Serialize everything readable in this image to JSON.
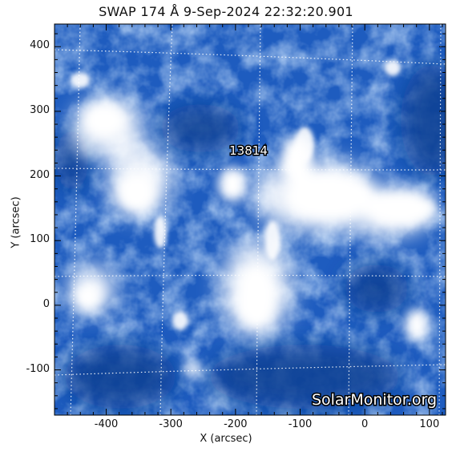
{
  "title": "SWAP  174 Å   9-Sep-2024 22:32:20.901",
  "xaxis": {
    "label": "X (arcsec)",
    "ticks": [
      "-400",
      "-300",
      "-200",
      "-100",
      "0",
      "100"
    ],
    "tick_values": [
      -400,
      -300,
      -200,
      -100,
      0,
      100
    ],
    "range": [
      -480,
      125
    ]
  },
  "yaxis": {
    "label": "Y (arcsec)",
    "ticks": [
      "400",
      "300",
      "200",
      "100",
      "0",
      "-100"
    ],
    "tick_values": [
      400,
      300,
      200,
      100,
      0,
      -100
    ],
    "range": [
      -170,
      435
    ]
  },
  "region_label": "13814",
  "watermark": "SolarMonitor.org",
  "colors": {
    "image_dark": "#0b3f91",
    "image_mid": "#2a6fd0",
    "image_light": "#8fb8ee",
    "image_bright": "#ffffff"
  }
}
